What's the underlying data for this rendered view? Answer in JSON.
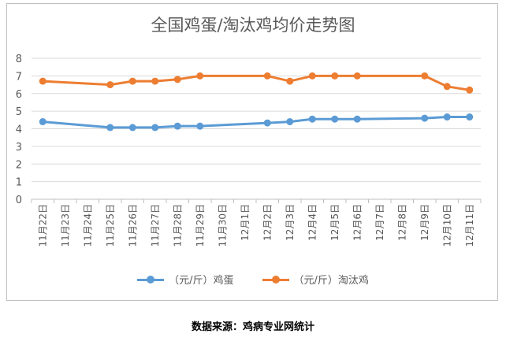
{
  "colors": {
    "series_egg": "#5b9bd5",
    "series_hen": "#ed7d31",
    "grid": "#d9d9d9",
    "axis_text": "#595959"
  },
  "source_text": "数据来源：鸡病专业网统计",
  "chart_data": {
    "type": "line",
    "title": "全国鸡蛋/淘汰鸡均价走势图",
    "xlabel": "",
    "ylabel": "",
    "ylim": [
      0,
      8
    ],
    "yticks": [
      "0",
      "1",
      "2",
      "3",
      "4",
      "5",
      "6",
      "7",
      "8"
    ],
    "grid": true,
    "legend_position": "bottom",
    "categories": [
      "11月22日",
      "11月23日",
      "11月24日",
      "11月25日",
      "11月26日",
      "11月27日",
      "11月28日",
      "11月29日",
      "11月30日",
      "12月1日",
      "12月2日",
      "12月3日",
      "12月4日",
      "12月5日",
      "12月6日",
      "12月7日",
      "12月8日",
      "12月9日",
      "12月10日",
      "12月11日"
    ],
    "series": [
      {
        "name": "（元/斤）鸡蛋",
        "color_key": "series_egg",
        "values": [
          4.4,
          null,
          null,
          4.07,
          4.07,
          4.07,
          4.15,
          4.15,
          null,
          null,
          4.33,
          4.4,
          4.55,
          4.55,
          4.55,
          null,
          null,
          4.6,
          4.67,
          4.67
        ]
      },
      {
        "name": "（元/斤）淘汰鸡",
        "color_key": "series_hen",
        "values": [
          6.7,
          null,
          null,
          6.5,
          6.7,
          6.7,
          6.8,
          7.0,
          null,
          null,
          7.0,
          6.7,
          7.0,
          7.0,
          7.0,
          null,
          null,
          7.0,
          6.4,
          6.2
        ]
      }
    ]
  }
}
